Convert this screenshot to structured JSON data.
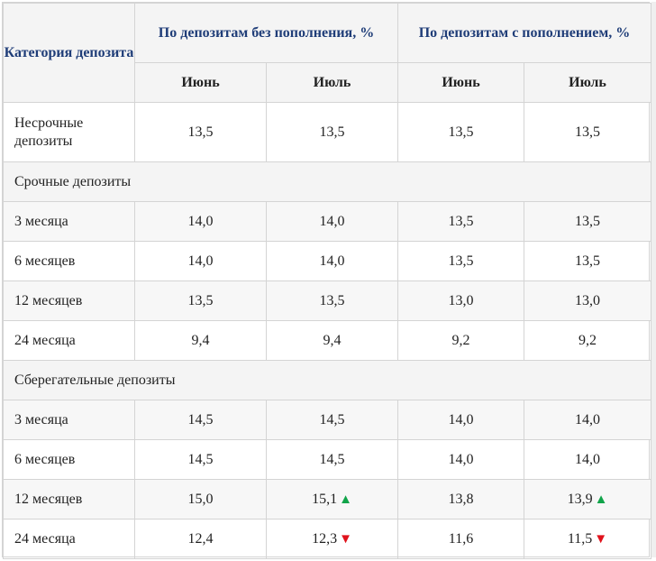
{
  "header": {
    "category": "Категория депозита",
    "group1": "По депозитам без пополнения, %",
    "group2": "По депозитам с пополнением, %",
    "months": [
      "Июнь",
      "Июль",
      "Июнь",
      "Июль"
    ]
  },
  "rows": [
    {
      "label": "Несрочные депозиты",
      "values": [
        "13,5",
        "13,5",
        "13,5",
        "13,5"
      ]
    },
    {
      "section": "Срочные депозиты"
    },
    {
      "label": "3 месяца",
      "values": [
        "14,0",
        "14,0",
        "13,5",
        "13,5"
      ]
    },
    {
      "label": "6 месяцев",
      "values": [
        "14,0",
        "14,0",
        "13,5",
        "13,5"
      ]
    },
    {
      "label": "12 месяцев",
      "values": [
        "13,5",
        "13,5",
        "13,0",
        "13,0"
      ]
    },
    {
      "label": "24 месяца",
      "values": [
        "9,4",
        "9,4",
        "9,2",
        "9,2"
      ]
    },
    {
      "section": "Сберегательные депозиты"
    },
    {
      "label": "3 месяца",
      "values": [
        "14,5",
        "14,5",
        "14,0",
        "14,0"
      ]
    },
    {
      "label": "6 месяцев",
      "values": [
        "14,5",
        "14,5",
        "14,0",
        "14,0"
      ]
    },
    {
      "label": "12 месяцев",
      "values": [
        "15,0",
        "15,1",
        "13,8",
        "13,9"
      ],
      "arrows": [
        "",
        "up",
        "",
        "up"
      ]
    },
    {
      "label": "24 месяца",
      "values": [
        "12,4",
        "12,3",
        "11,6",
        "11,5"
      ],
      "arrows": [
        "",
        "down",
        "",
        "down"
      ]
    }
  ],
  "colors": {
    "up": "#11a44a",
    "down": "#e0121c",
    "header_text": "#1f3d78"
  },
  "icons": {
    "up": "triangle-up-icon",
    "down": "triangle-down-icon"
  }
}
